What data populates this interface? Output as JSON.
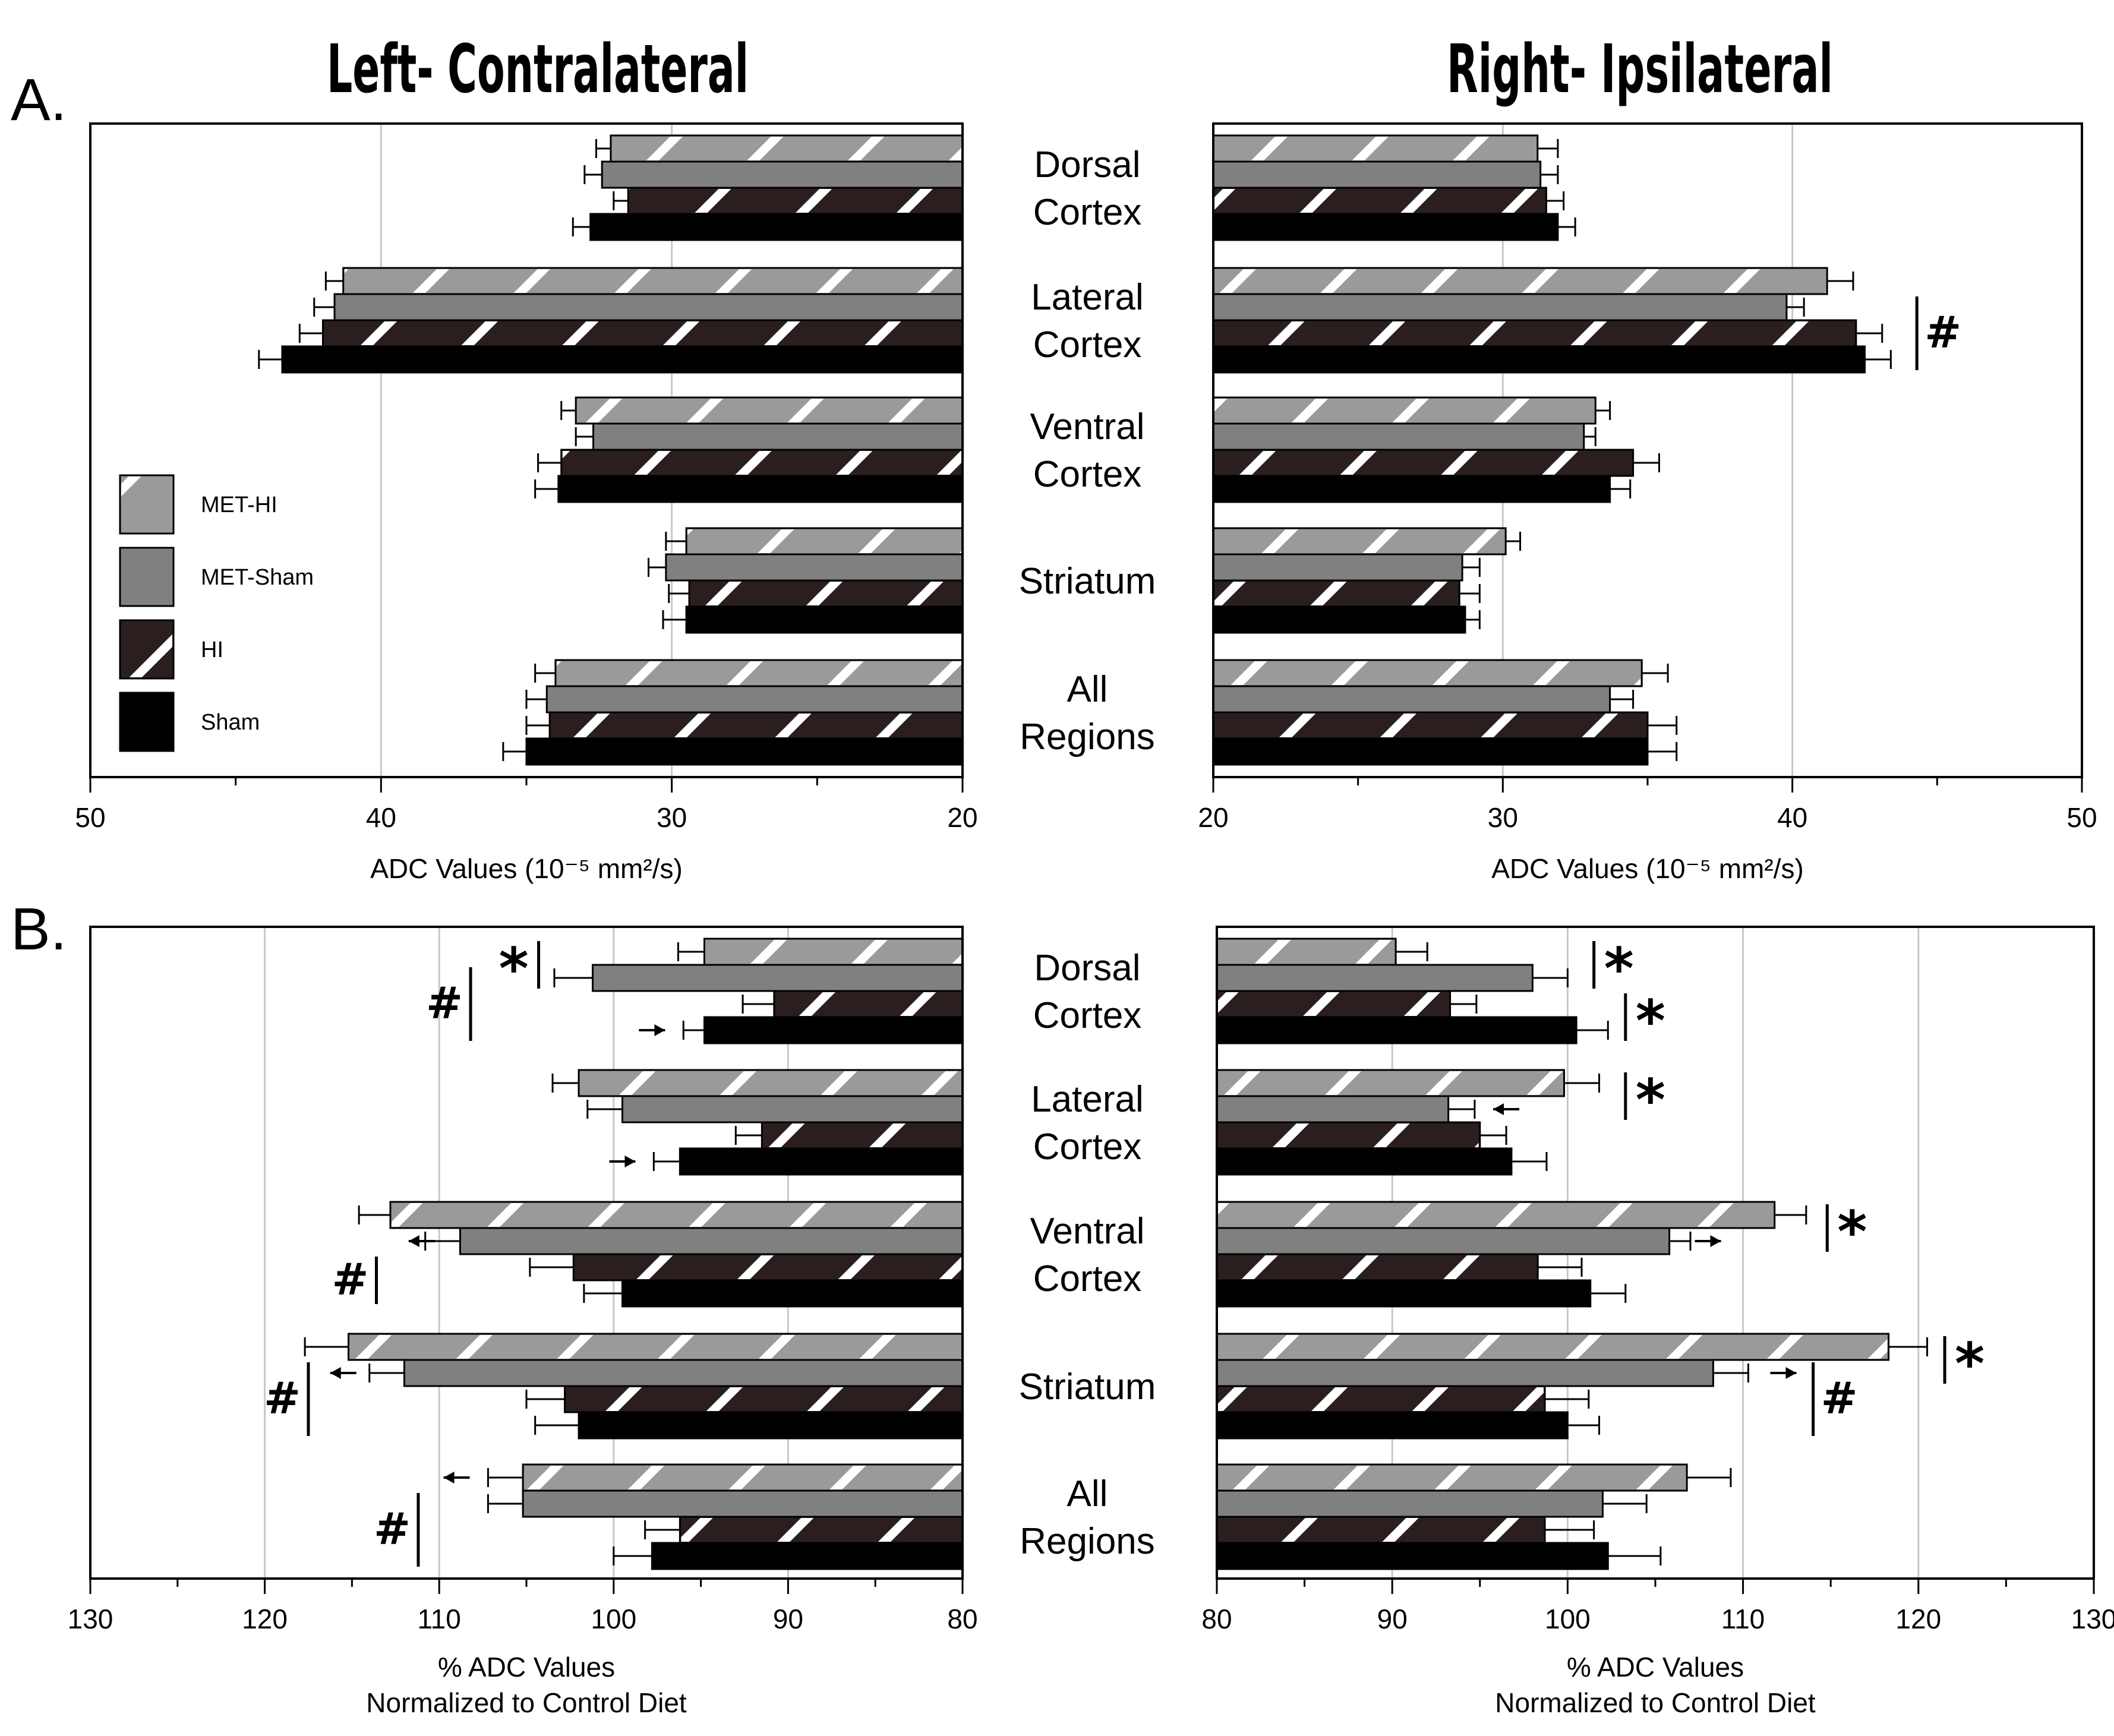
{
  "titles": {
    "left": "Left- Contralateral",
    "right": "Right- Ipsilateral"
  },
  "panel_labels": {
    "a": "A.",
    "b": "B."
  },
  "colors": {
    "MET-HI": "#9a9a9a",
    "MET-Sham": "#808080",
    "HI": "#2a1e1e",
    "Sham": "#000000",
    "hatch": "#ffffff",
    "grid": "#c8c8c8"
  },
  "legend": [
    {
      "name": "MET-HI",
      "label": "MET-HI"
    },
    {
      "name": "MET-Sham",
      "label": "MET-Sham"
    },
    {
      "name": "HI",
      "label": "HI"
    },
    {
      "name": "Sham",
      "label": "Sham"
    }
  ],
  "regions": [
    {
      "key": "dorsal",
      "lines": [
        "Dorsal",
        "Cortex"
      ]
    },
    {
      "key": "lateral",
      "lines": [
        "Lateral",
        "Cortex"
      ]
    },
    {
      "key": "ventral",
      "lines": [
        "Ventral",
        "Cortex"
      ]
    },
    {
      "key": "striatum",
      "lines": [
        "Striatum"
      ]
    },
    {
      "key": "all",
      "lines": [
        "All",
        "Regions"
      ]
    }
  ],
  "chart_data": [
    {
      "id": "A-left",
      "type": "bar",
      "orientation": "horizontal",
      "direction": "leftward",
      "title": "Left- Contralateral",
      "xlabel": "ADC Values (10⁻⁵ mm²/s)",
      "xlim": [
        20,
        50
      ],
      "ticks": [
        "50",
        "40",
        "30",
        "20"
      ],
      "tick_values": [
        50,
        40,
        30,
        20
      ],
      "minor_tick_step": 5,
      "categories": [
        "Dorsal Cortex",
        "Lateral Cortex",
        "Ventral Cortex",
        "Striatum",
        "All Regions"
      ],
      "series": [
        {
          "name": "MET-HI",
          "values": [
            32.1,
            41.3,
            33.3,
            29.5,
            34.0
          ],
          "errors": [
            0.5,
            0.6,
            0.5,
            0.7,
            0.7
          ]
        },
        {
          "name": "MET-Sham",
          "values": [
            32.4,
            41.6,
            32.7,
            30.2,
            34.3
          ],
          "errors": [
            0.6,
            0.7,
            0.6,
            0.6,
            0.7
          ]
        },
        {
          "name": "HI",
          "values": [
            31.5,
            42.0,
            33.8,
            29.4,
            34.2
          ],
          "errors": [
            0.5,
            0.8,
            0.8,
            0.7,
            0.8
          ]
        },
        {
          "name": "Sham",
          "values": [
            32.8,
            43.4,
            33.9,
            29.5,
            35.0
          ],
          "errors": [
            0.6,
            0.8,
            0.8,
            0.8,
            0.8
          ]
        }
      ],
      "annotations": []
    },
    {
      "id": "A-right",
      "type": "bar",
      "orientation": "horizontal",
      "direction": "rightward",
      "title": "Right- Ipsilateral",
      "xlabel": "ADC Values (10⁻⁵ mm²/s)",
      "xlim": [
        20,
        50
      ],
      "ticks": [
        "20",
        "30",
        "40",
        "50"
      ],
      "tick_values": [
        20,
        30,
        40,
        50
      ],
      "minor_tick_step": 5,
      "categories": [
        "Dorsal Cortex",
        "Lateral Cortex",
        "Ventral Cortex",
        "Striatum",
        "All Regions"
      ],
      "series": [
        {
          "name": "MET-HI",
          "values": [
            31.2,
            41.2,
            33.2,
            30.1,
            34.8
          ],
          "errors": [
            0.7,
            0.9,
            0.5,
            0.5,
            0.9
          ]
        },
        {
          "name": "MET-Sham",
          "values": [
            31.3,
            39.8,
            32.8,
            28.6,
            33.7
          ],
          "errors": [
            0.6,
            0.6,
            0.4,
            0.6,
            0.8
          ]
        },
        {
          "name": "HI",
          "values": [
            31.5,
            42.2,
            34.5,
            28.5,
            35.0
          ],
          "errors": [
            0.6,
            0.9,
            0.9,
            0.7,
            1.0
          ]
        },
        {
          "name": "Sham",
          "values": [
            31.9,
            42.5,
            33.7,
            28.7,
            35.0
          ],
          "errors": [
            0.6,
            0.9,
            0.7,
            0.5,
            1.0
          ]
        }
      ],
      "annotations": [
        {
          "text": "#",
          "region": 1,
          "from_series": 1,
          "to_series": 3,
          "value": 44.3
        }
      ]
    },
    {
      "id": "B-left",
      "type": "bar",
      "orientation": "horizontal",
      "direction": "leftward",
      "xlabel_lines": [
        "% ADC Values",
        "Normalized to Control Diet"
      ],
      "xlim": [
        80,
        130
      ],
      "ticks": [
        "130",
        "120",
        "110",
        "100",
        "90",
        "80"
      ],
      "tick_values": [
        130,
        120,
        110,
        100,
        90,
        80
      ],
      "minor_tick_step": 5,
      "categories": [
        "Dorsal Cortex",
        "Lateral Cortex",
        "Ventral Cortex",
        "Striatum",
        "All Regions"
      ],
      "series": [
        {
          "name": "MET-HI",
          "values": [
            94.8,
            102.0,
            112.8,
            115.2,
            105.2
          ],
          "errors": [
            1.5,
            1.5,
            1.8,
            2.5,
            2.0
          ]
        },
        {
          "name": "MET-Sham",
          "values": [
            101.2,
            99.5,
            108.8,
            112.0,
            105.2
          ],
          "errors": [
            2.2,
            2.0,
            2.0,
            2.0,
            2.0
          ]
        },
        {
          "name": "HI",
          "values": [
            90.8,
            91.5,
            102.3,
            102.8,
            96.2
          ],
          "errors": [
            1.8,
            1.5,
            2.5,
            2.2,
            2.0
          ]
        },
        {
          "name": "Sham",
          "values": [
            94.8,
            96.2,
            99.5,
            102.0,
            97.8
          ],
          "errors": [
            1.2,
            1.5,
            2.2,
            2.5,
            2.2
          ]
        }
      ],
      "annotations": [
        {
          "text": "*",
          "region": 0,
          "from_series": 0,
          "to_series": 1,
          "value": 104.3
        },
        {
          "text": "#",
          "region": 0,
          "from_series": 1,
          "to_series": 3,
          "value": 108.2
        },
        {
          "text": "#",
          "region": 2,
          "from_series": 2,
          "to_series": 3,
          "value": 113.6
        },
        {
          "text": "#",
          "region": 3,
          "from_series": 1,
          "to_series": 3,
          "value": 117.5
        },
        {
          "text": "#",
          "region": 4,
          "from_series": 1,
          "to_series": 3,
          "value": 111.2
        }
      ],
      "arrows": [
        {
          "region": 0,
          "series": 3,
          "value": 97.8,
          "dir": "right"
        },
        {
          "region": 1,
          "series": 3,
          "value": 99.5,
          "dir": "right"
        },
        {
          "region": 2,
          "series": 1,
          "value": 111.0,
          "dir": "left"
        },
        {
          "region": 3,
          "series": 1,
          "value": 115.5,
          "dir": "left"
        },
        {
          "region": 4,
          "series": 0,
          "value": 109.0,
          "dir": "left"
        }
      ]
    },
    {
      "id": "B-right",
      "type": "bar",
      "orientation": "horizontal",
      "direction": "rightward",
      "xlabel_lines": [
        "% ADC Values",
        "Normalized to Control Diet"
      ],
      "xlim": [
        80,
        130
      ],
      "ticks": [
        "80",
        "90",
        "100",
        "110",
        "120",
        "130"
      ],
      "tick_values": [
        80,
        90,
        100,
        110,
        120,
        130
      ],
      "minor_tick_step": 5,
      "categories": [
        "Dorsal Cortex",
        "Lateral Cortex",
        "Ventral Cortex",
        "Striatum",
        "All Regions"
      ],
      "series": [
        {
          "name": "MET-HI",
          "values": [
            90.2,
            99.8,
            111.8,
            118.3,
            106.8
          ],
          "errors": [
            1.8,
            2.0,
            1.8,
            2.2,
            2.5
          ]
        },
        {
          "name": "MET-Sham",
          "values": [
            98.0,
            93.2,
            105.8,
            108.3,
            102.0
          ],
          "errors": [
            2.0,
            1.5,
            1.2,
            2.0,
            2.5
          ]
        },
        {
          "name": "HI",
          "values": [
            93.3,
            95.0,
            98.3,
            98.7,
            98.7
          ],
          "errors": [
            1.5,
            1.5,
            2.5,
            2.5,
            2.8
          ]
        },
        {
          "name": "Sham",
          "values": [
            100.5,
            96.8,
            101.3,
            100.0,
            102.3
          ],
          "errors": [
            1.8,
            2.0,
            2.0,
            1.8,
            3.0
          ]
        }
      ],
      "annotations": [
        {
          "text": "*",
          "region": 0,
          "from_series": 0,
          "to_series": 1,
          "value": 101.5
        },
        {
          "text": "*",
          "region": 0,
          "from_series": 2,
          "to_series": 3,
          "value": 103.3
        },
        {
          "text": "*",
          "region": 1,
          "from_series": 0,
          "to_series": 1,
          "value": 103.3
        },
        {
          "text": "*",
          "region": 2,
          "from_series": 0,
          "to_series": 1,
          "value": 114.8
        },
        {
          "text": "*",
          "region": 3,
          "from_series": 0,
          "to_series": 1,
          "value": 121.5
        },
        {
          "text": "#",
          "region": 3,
          "from_series": 1,
          "to_series": 3,
          "value": 114.0
        }
      ],
      "arrows": [
        {
          "region": 1,
          "series": 1,
          "value": 96.5,
          "dir": "left"
        },
        {
          "region": 2,
          "series": 1,
          "value": 108.0,
          "dir": "right"
        },
        {
          "region": 3,
          "series": 1,
          "value": 112.3,
          "dir": "right"
        }
      ]
    }
  ]
}
